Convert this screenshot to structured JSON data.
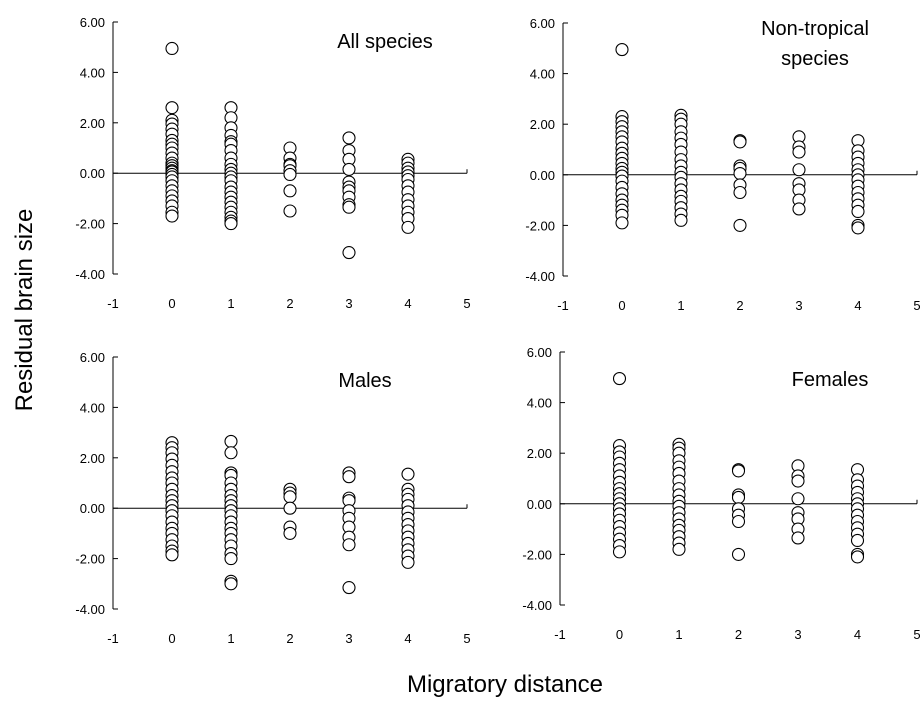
{
  "chart_data": {
    "type": "scatter",
    "xlabel": "Migratory distance",
    "ylabel": "Residual brain size",
    "panels": [
      {
        "title_lines": [
          "All species"
        ],
        "xlim": [
          -1,
          5
        ],
        "ylim": [
          -4,
          6
        ],
        "xticks": [
          "-1",
          "0",
          "1",
          "2",
          "3",
          "4",
          "5"
        ],
        "yticks": [
          "-4.00",
          "-2.00",
          "0.00",
          "2.00",
          "4.00",
          "6.00"
        ],
        "series": [
          {
            "x": 0,
            "y": [
              4.95,
              2.6,
              2.1,
              1.95,
              1.75,
              1.55,
              1.3,
              1.15,
              1.0,
              0.8,
              0.6,
              0.4,
              0.3,
              0.2,
              0.1,
              0.05,
              -0.05,
              -0.15,
              -0.3,
              -0.5,
              -0.7,
              -0.9,
              -1.1,
              -1.3,
              -1.55,
              -1.7
            ]
          },
          {
            "x": 1,
            "y": [
              2.6,
              2.2,
              1.8,
              1.5,
              1.25,
              1.15,
              0.9,
              0.6,
              0.35,
              0.15,
              0.0,
              -0.15,
              -0.3,
              -0.55,
              -0.75,
              -0.95,
              -1.15,
              -1.35,
              -1.55,
              -1.75,
              -1.9,
              -2.0
            ]
          },
          {
            "x": 2,
            "y": [
              1.0,
              0.6,
              0.35,
              0.3,
              0.1,
              -0.05,
              -0.7,
              -1.5
            ]
          },
          {
            "x": 3,
            "y": [
              1.4,
              0.9,
              0.55,
              0.15,
              -0.35,
              -0.55,
              -0.7,
              -0.95,
              -1.25,
              -1.35,
              -3.15
            ]
          },
          {
            "x": 4,
            "y": [
              0.55,
              0.4,
              0.2,
              0.05,
              -0.1,
              -0.25,
              -0.5,
              -0.75,
              -1.05,
              -1.3,
              -1.55,
              -1.8,
              -2.15
            ]
          }
        ]
      },
      {
        "title_lines": [
          "Non-tropical",
          "species"
        ],
        "xlim": [
          -1,
          5
        ],
        "ylim": [
          -4,
          6
        ],
        "xticks": [
          "-1",
          "0",
          "1",
          "2",
          "3",
          "4",
          "5"
        ],
        "yticks": [
          "-4.00",
          "-2.00",
          "0.00",
          "2.00",
          "4.00",
          "6.00"
        ],
        "series": [
          {
            "x": 0,
            "y": [
              4.95,
              2.3,
              2.1,
              1.9,
              1.7,
              1.5,
              1.3,
              1.05,
              0.85,
              0.65,
              0.45,
              0.25,
              0.1,
              -0.05,
              -0.25,
              -0.5,
              -0.75,
              -1.0,
              -1.2,
              -1.4,
              -1.6,
              -1.9
            ]
          },
          {
            "x": 1,
            "y": [
              2.35,
              2.2,
              2.0,
              1.7,
              1.45,
              1.2,
              0.9,
              0.6,
              0.35,
              0.1,
              -0.1,
              -0.35,
              -0.6,
              -0.85,
              -1.05,
              -1.3,
              -1.55,
              -1.8
            ]
          },
          {
            "x": 2,
            "y": [
              1.35,
              1.3,
              0.35,
              0.25,
              0.05,
              -0.4,
              -0.7,
              -2.0
            ]
          },
          {
            "x": 3,
            "y": [
              1.5,
              1.1,
              0.9,
              0.2,
              -0.35,
              -0.6,
              -1.0,
              -1.35
            ]
          },
          {
            "x": 4,
            "y": [
              1.35,
              0.95,
              0.7,
              0.45,
              0.2,
              0.0,
              -0.2,
              -0.45,
              -0.7,
              -0.95,
              -1.2,
              -1.45,
              -2.0,
              -2.1
            ]
          }
        ]
      },
      {
        "title_lines": [
          "Males"
        ],
        "xlim": [
          -1,
          5
        ],
        "ylim": [
          -4,
          6
        ],
        "xticks": [
          "-1",
          "0",
          "1",
          "2",
          "3",
          "4",
          "5"
        ],
        "yticks": [
          "-4.00",
          "-2.00",
          "0.00",
          "2.00",
          "4.00",
          "6.00"
        ],
        "series": [
          {
            "x": 0,
            "y": [
              2.6,
              2.4,
              2.2,
              1.95,
              1.7,
              1.45,
              1.2,
              1.0,
              0.75,
              0.5,
              0.3,
              0.1,
              -0.1,
              -0.3,
              -0.55,
              -0.8,
              -1.0,
              -1.25,
              -1.5,
              -1.7,
              -1.85
            ]
          },
          {
            "x": 1,
            "y": [
              2.65,
              2.2,
              1.4,
              1.3,
              1.0,
              0.75,
              0.5,
              0.3,
              0.1,
              -0.1,
              -0.3,
              -0.55,
              -0.8,
              -1.0,
              -1.25,
              -1.5,
              -1.8,
              -2.0,
              -2.9,
              -3.0
            ]
          },
          {
            "x": 2,
            "y": [
              0.75,
              0.6,
              0.45,
              0.0,
              -0.75,
              -1.0
            ]
          },
          {
            "x": 3,
            "y": [
              1.4,
              1.25,
              0.4,
              0.3,
              -0.1,
              -0.4,
              -0.75,
              -1.15,
              -1.45,
              -3.15
            ]
          },
          {
            "x": 4,
            "y": [
              1.35,
              0.75,
              0.55,
              0.35,
              0.1,
              -0.15,
              -0.4,
              -0.65,
              -0.9,
              -1.15,
              -1.4,
              -1.65,
              -1.9,
              -2.15
            ]
          }
        ]
      },
      {
        "title_lines": [
          "Females"
        ],
        "xlim": [
          -1,
          5
        ],
        "ylim": [
          -4,
          6
        ],
        "xticks": [
          "-1",
          "0",
          "1",
          "2",
          "3",
          "4",
          "5"
        ],
        "yticks": [
          "-4.00",
          "-2.00",
          "0.00",
          "2.00",
          "4.00",
          "6.00"
        ],
        "series": [
          {
            "x": 0,
            "y": [
              4.95,
              2.3,
              2.05,
              1.85,
              1.6,
              1.35,
              1.1,
              0.85,
              0.6,
              0.4,
              0.2,
              0.0,
              -0.2,
              -0.4,
              -0.65,
              -0.9,
              -1.15,
              -1.4,
              -1.65,
              -1.9
            ]
          },
          {
            "x": 1,
            "y": [
              2.35,
              2.2,
              2.0,
              1.7,
              1.45,
              1.2,
              0.9,
              0.6,
              0.35,
              0.1,
              -0.1,
              -0.35,
              -0.6,
              -0.85,
              -1.05,
              -1.3,
              -1.55,
              -1.8
            ]
          },
          {
            "x": 2,
            "y": [
              1.35,
              1.3,
              0.35,
              0.25,
              -0.2,
              -0.45,
              -0.7,
              -2.0
            ]
          },
          {
            "x": 3,
            "y": [
              1.5,
              1.1,
              0.9,
              0.2,
              -0.35,
              -0.6,
              -1.0,
              -1.35
            ]
          },
          {
            "x": 4,
            "y": [
              1.35,
              0.95,
              0.7,
              0.45,
              0.2,
              0.0,
              -0.2,
              -0.45,
              -0.7,
              -0.95,
              -1.2,
              -1.45,
              -2.0,
              -2.1
            ]
          }
        ]
      }
    ]
  }
}
